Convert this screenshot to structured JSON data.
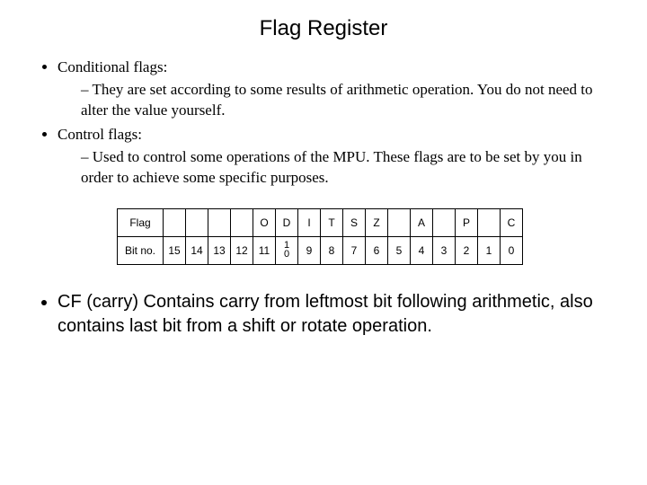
{
  "title": "Flag Register",
  "bullets": {
    "item1": "Conditional flags:",
    "item1_sub": "They are set according to some results of arithmetic operation. You do not need to alter the value yourself.",
    "item2": "Control flags:",
    "item2_sub": "Used to control some operations of the MPU. These flags are to be set by you in order to achieve some specific purposes."
  },
  "table": {
    "columns": 17,
    "row_labels": {
      "flag": "Flag",
      "bitno": "Bit no."
    },
    "flag_row": [
      "",
      "",
      "",
      "",
      "O",
      "D",
      "I",
      "T",
      "S",
      "Z",
      "",
      "A",
      "",
      "P",
      "",
      "C"
    ],
    "bitno_row": [
      "15",
      "14",
      "13",
      "12",
      "11",
      "10",
      "9",
      "8",
      "7",
      "6",
      "5",
      "4",
      "3",
      "2",
      "1",
      "0"
    ],
    "border_color": "#000000",
    "cell_font_size": 12,
    "ten_stacked": "1\n0"
  },
  "bottom": "CF (carry) Contains carry from leftmost bit following arithmetic, also contains last bit from a shift or rotate operation.",
  "colors": {
    "background": "#ffffff",
    "text": "#000000"
  }
}
